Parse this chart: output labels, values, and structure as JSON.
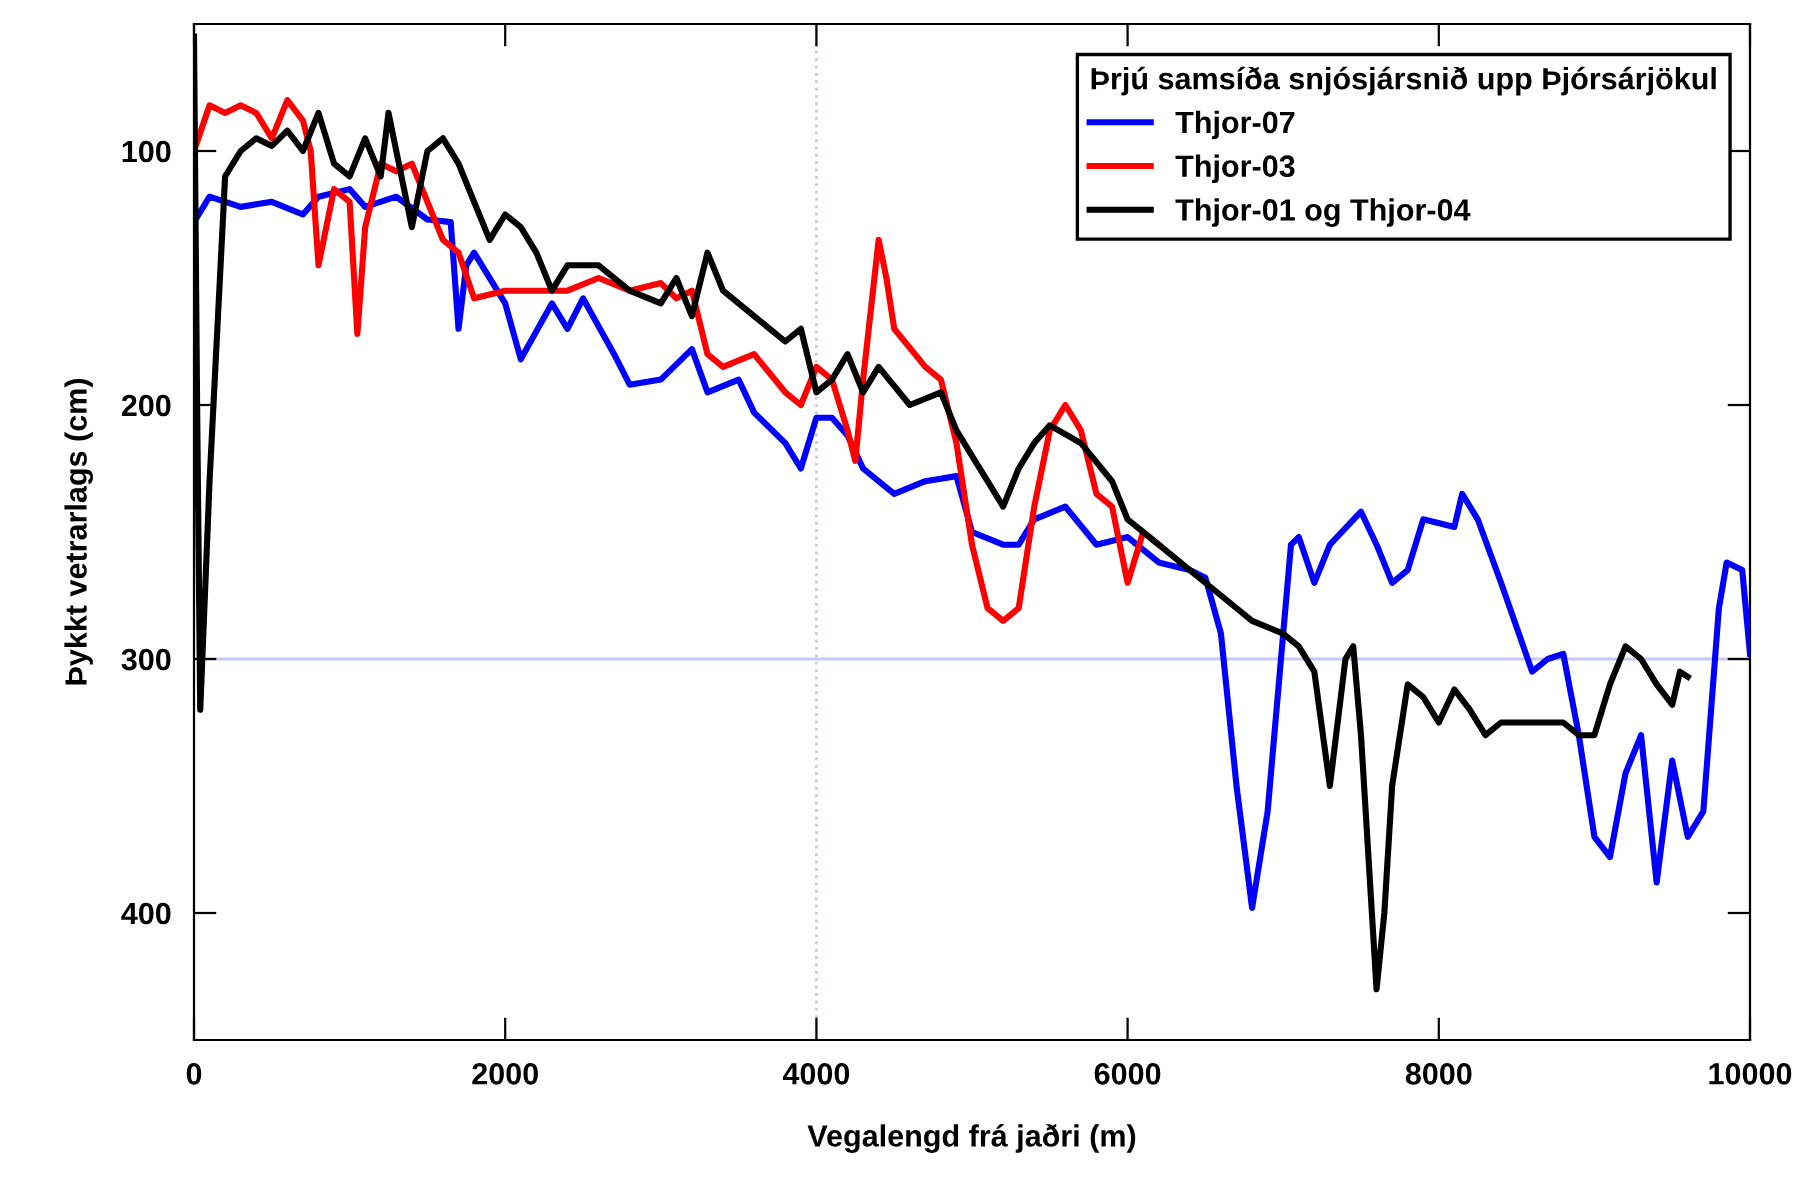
{
  "chart_data": {
    "type": "line",
    "xlabel": "Vegalengd frá jaðri (m)",
    "ylabel": "Þykkt vetrarlags (cm)",
    "legend_title": "Þrjú samsíða snjósjársnið upp Þjórsárjökul",
    "legend": "top right",
    "grid": false,
    "marker": "none",
    "line_style": "solid",
    "xlim": [
      0,
      10000
    ],
    "xticks": [
      0,
      2000,
      4000,
      6000,
      8000,
      10000
    ],
    "ylim": [
      450,
      50
    ],
    "yticks": [
      100,
      200,
      300,
      400
    ],
    "ref_lines": [
      {
        "axis": "x",
        "value": 4000,
        "label": null,
        "color": "#c8c8f0",
        "line_style": "dotted"
      },
      {
        "axis": "y",
        "value": 300,
        "label": null,
        "color": "#c8c8f0",
        "line_style": "solid"
      }
    ],
    "series": [
      {
        "name": "Thjor-07",
        "color": "#0000ff",
        "x": [
          0,
          100,
          300,
          500,
          700,
          800,
          1000,
          1100,
          1300,
          1500,
          1650,
          1700,
          1750,
          1800,
          2000,
          2100,
          2300,
          2400,
          2500,
          2700,
          2800,
          3000,
          3200,
          3300,
          3500,
          3600,
          3800,
          3900,
          4000,
          4100,
          4200,
          4300,
          4500,
          4700,
          4900,
          5000,
          5200,
          5300,
          5400,
          5600,
          5800,
          6000,
          6200,
          6400,
          6500,
          6600,
          6700,
          6800,
          6900,
          7000,
          7050,
          7100,
          7200,
          7300,
          7500,
          7600,
          7700,
          7800,
          7900,
          8100,
          8150,
          8250,
          8400,
          8600,
          8700,
          8800,
          8900,
          9000,
          9100,
          9200,
          9300,
          9400,
          9500,
          9600,
          9700,
          9800,
          9850,
          9950,
          10000
        ],
        "values": [
          128,
          118,
          122,
          120,
          125,
          118,
          115,
          122,
          118,
          127,
          128,
          170,
          145,
          140,
          160,
          182,
          160,
          170,
          158,
          180,
          192,
          190,
          178,
          195,
          190,
          203,
          215,
          225,
          205,
          205,
          212,
          225,
          235,
          230,
          228,
          250,
          255,
          255,
          245,
          240,
          255,
          252,
          262,
          265,
          268,
          290,
          350,
          398,
          360,
          290,
          255,
          252,
          270,
          255,
          242,
          255,
          270,
          265,
          245,
          248,
          235,
          245,
          270,
          305,
          300,
          298,
          330,
          370,
          378,
          345,
          330,
          388,
          340,
          370,
          360,
          280,
          262,
          265,
          298
        ]
      },
      {
        "name": "Thjor-03",
        "color": "#ff0000",
        "x": [
          0,
          100,
          200,
          300,
          400,
          500,
          600,
          700,
          750,
          800,
          900,
          1000,
          1050,
          1100,
          1200,
          1300,
          1400,
          1500,
          1600,
          1700,
          1800,
          2000,
          2200,
          2400,
          2600,
          2800,
          3000,
          3100,
          3200,
          3300,
          3400,
          3600,
          3800,
          3900,
          4000,
          4100,
          4200,
          4250,
          4300,
          4400,
          4450,
          4500,
          4700,
          4800,
          4900,
          5000,
          5100,
          5200,
          5300,
          5400,
          5500,
          5600,
          5700,
          5800,
          5900,
          6000,
          6100,
          6200
        ],
        "values": [
          100,
          82,
          85,
          82,
          85,
          95,
          80,
          88,
          100,
          145,
          115,
          120,
          172,
          130,
          105,
          108,
          105,
          120,
          135,
          140,
          158,
          155,
          155,
          155,
          150,
          155,
          152,
          158,
          155,
          180,
          185,
          180,
          195,
          200,
          185,
          190,
          210,
          222,
          190,
          135,
          150,
          170,
          185,
          190,
          215,
          255,
          280,
          285,
          280,
          240,
          210,
          200,
          210,
          235,
          240,
          270,
          250,
          255
        ]
      },
      {
        "name": "Thjor-01 og Thjor-04",
        "color": "#000000",
        "x": [
          0,
          20,
          40,
          100,
          200,
          300,
          400,
          500,
          600,
          700,
          800,
          900,
          1000,
          1100,
          1200,
          1250,
          1300,
          1400,
          1500,
          1600,
          1700,
          1800,
          1900,
          2000,
          2100,
          2200,
          2300,
          2400,
          2600,
          2800,
          3000,
          3100,
          3200,
          3300,
          3400,
          3600,
          3700,
          3800,
          3900,
          4000,
          4100,
          4200,
          4300,
          4400,
          4600,
          4800,
          4900,
          5000,
          5100,
          5200,
          5300,
          5400,
          5500,
          5700,
          5900,
          6000,
          6200,
          6400,
          6600,
          6800,
          7000,
          7100,
          7200,
          7300,
          7400,
          7450,
          7500,
          7600,
          7650,
          7700,
          7800,
          7900,
          8000,
          8100,
          8200,
          8300,
          8400,
          8600,
          8800,
          8900,
          9000,
          9100,
          9200,
          9300,
          9400,
          9500,
          9550,
          9600
        ],
        "values": [
          55,
          200,
          320,
          230,
          110,
          100,
          95,
          98,
          92,
          100,
          85,
          105,
          110,
          95,
          110,
          85,
          100,
          130,
          100,
          95,
          105,
          120,
          135,
          125,
          130,
          140,
          155,
          145,
          145,
          155,
          160,
          150,
          165,
          140,
          155,
          165,
          170,
          175,
          170,
          195,
          190,
          180,
          195,
          185,
          200,
          195,
          210,
          220,
          230,
          240,
          225,
          215,
          208,
          215,
          230,
          245,
          255,
          265,
          275,
          285,
          290,
          295,
          305,
          350,
          300,
          295,
          330,
          430,
          400,
          350,
          310,
          315,
          325,
          312,
          320,
          330,
          325,
          325,
          325,
          330,
          330,
          310,
          295,
          300,
          310,
          318,
          305,
          307
        ]
      }
    ]
  }
}
